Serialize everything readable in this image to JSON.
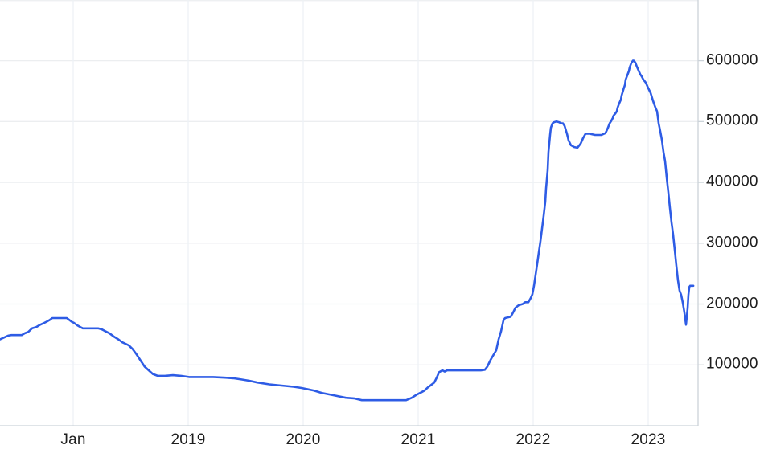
{
  "chart": {
    "title": "",
    "colors": {
      "line": "#2e5ce5",
      "grid_horizontal": "#eceef0",
      "grid_vertical": "#edf2f6",
      "axis": "#ccd3d9",
      "label": "#1e1e1e",
      "background": "#ffffff"
    }
  },
  "chart_data": {
    "type": "line",
    "title": "",
    "xlabel": "",
    "ylabel": "",
    "legend": false,
    "grid": true,
    "y_axis_side": "right",
    "x_range": [
      2017.36,
      2023.43
    ],
    "y_range": [
      0,
      700000
    ],
    "x_ticks": [
      {
        "label": "Jan",
        "year": 2018
      },
      {
        "label": "2019",
        "year": 2019
      },
      {
        "label": "2020",
        "year": 2020
      },
      {
        "label": "2021",
        "year": 2021
      },
      {
        "label": "2022",
        "year": 2022
      },
      {
        "label": "2023",
        "year": 2023
      }
    ],
    "y_ticks": [
      {
        "label": "100000",
        "value": 100000
      },
      {
        "label": "200000",
        "value": 200000
      },
      {
        "label": "300000",
        "value": 300000
      },
      {
        "label": "400000",
        "value": 400000
      },
      {
        "label": "500000",
        "value": 500000
      },
      {
        "label": "600000",
        "value": 600000
      }
    ],
    "y_gridlines": [
      100000,
      200000,
      300000,
      400000,
      500000,
      600000,
      700000
    ],
    "points": [
      [
        2017.364,
        142000
      ],
      [
        2017.399,
        145000
      ],
      [
        2017.434,
        148000
      ],
      [
        2017.462,
        149000
      ],
      [
        2017.552,
        149000
      ],
      [
        2017.58,
        152000
      ],
      [
        2017.608,
        154000
      ],
      [
        2017.643,
        160000
      ],
      [
        2017.678,
        162000
      ],
      [
        2017.713,
        166000
      ],
      [
        2017.748,
        169000
      ],
      [
        2017.769,
        171000
      ],
      [
        2017.797,
        174000
      ],
      [
        2017.818,
        177000
      ],
      [
        2017.944,
        177000
      ],
      [
        2017.965,
        174000
      ],
      [
        2017.986,
        171000
      ],
      [
        2018.007,
        169000
      ],
      [
        2018.035,
        165000
      ],
      [
        2018.063,
        162000
      ],
      [
        2018.084,
        160000
      ],
      [
        2018.217,
        160000
      ],
      [
        2018.252,
        158000
      ],
      [
        2018.273,
        156000
      ],
      [
        2018.315,
        152000
      ],
      [
        2018.357,
        146000
      ],
      [
        2018.392,
        142000
      ],
      [
        2018.427,
        137000
      ],
      [
        2018.462,
        134000
      ],
      [
        2018.483,
        132000
      ],
      [
        2018.517,
        126000
      ],
      [
        2018.552,
        117000
      ],
      [
        2018.587,
        107000
      ],
      [
        2018.622,
        97000
      ],
      [
        2018.657,
        91000
      ],
      [
        2018.692,
        85000
      ],
      [
        2018.734,
        82000
      ],
      [
        2018.797,
        82000
      ],
      [
        2018.867,
        83000
      ],
      [
        2018.937,
        82000
      ],
      [
        2019.007,
        80000
      ],
      [
        2019.112,
        80000
      ],
      [
        2019.217,
        80000
      ],
      [
        2019.322,
        79000
      ],
      [
        2019.392,
        78000
      ],
      [
        2019.462,
        76000
      ],
      [
        2019.531,
        74000
      ],
      [
        2019.601,
        71000
      ],
      [
        2019.706,
        68000
      ],
      [
        2019.811,
        66000
      ],
      [
        2019.916,
        64000
      ],
      [
        2019.986,
        62000
      ],
      [
        2020.091,
        58000
      ],
      [
        2020.161,
        54000
      ],
      [
        2020.266,
        50000
      ],
      [
        2020.371,
        46000
      ],
      [
        2020.441,
        45000
      ],
      [
        2020.51,
        42000
      ],
      [
        2020.79,
        42000
      ],
      [
        2020.895,
        42000
      ],
      [
        2020.944,
        46000
      ],
      [
        2020.986,
        51000
      ],
      [
        2021.028,
        55000
      ],
      [
        2021.056,
        58000
      ],
      [
        2021.084,
        63000
      ],
      [
        2021.112,
        67000
      ],
      [
        2021.14,
        71000
      ],
      [
        2021.161,
        79000
      ],
      [
        2021.182,
        88000
      ],
      [
        2021.21,
        91000
      ],
      [
        2021.231,
        89000
      ],
      [
        2021.252,
        91000
      ],
      [
        2021.545,
        91000
      ],
      [
        2021.58,
        92000
      ],
      [
        2021.601,
        97000
      ],
      [
        2021.629,
        108000
      ],
      [
        2021.65,
        115000
      ],
      [
        2021.678,
        124000
      ],
      [
        2021.699,
        142000
      ],
      [
        2021.72,
        155000
      ],
      [
        2021.741,
        173000
      ],
      [
        2021.755,
        177000
      ],
      [
        2021.804,
        179000
      ],
      [
        2021.825,
        186000
      ],
      [
        2021.846,
        194000
      ],
      [
        2021.874,
        198000
      ],
      [
        2021.909,
        200000
      ],
      [
        2021.93,
        203000
      ],
      [
        2021.958,
        203000
      ],
      [
        2021.979,
        210000
      ],
      [
        2021.993,
        216000
      ],
      [
        2022.007,
        230000
      ],
      [
        2022.021,
        248000
      ],
      [
        2022.035,
        266000
      ],
      [
        2022.049,
        285000
      ],
      [
        2022.063,
        303000
      ],
      [
        2022.077,
        324000
      ],
      [
        2022.091,
        345000
      ],
      [
        2022.105,
        368000
      ],
      [
        2022.112,
        390000
      ],
      [
        2022.126,
        420000
      ],
      [
        2022.133,
        450000
      ],
      [
        2022.147,
        478000
      ],
      [
        2022.154,
        490000
      ],
      [
        2022.168,
        497000
      ],
      [
        2022.182,
        499000
      ],
      [
        2022.203,
        500000
      ],
      [
        2022.224,
        499000
      ],
      [
        2022.245,
        497000
      ],
      [
        2022.259,
        497000
      ],
      [
        2022.273,
        493000
      ],
      [
        2022.294,
        480000
      ],
      [
        2022.308,
        469000
      ],
      [
        2022.329,
        461000
      ],
      [
        2022.357,
        458000
      ],
      [
        2022.385,
        457000
      ],
      [
        2022.413,
        464000
      ],
      [
        2022.434,
        473000
      ],
      [
        2022.455,
        480000
      ],
      [
        2022.49,
        480000
      ],
      [
        2022.538,
        478000
      ],
      [
        2022.594,
        478000
      ],
      [
        2022.629,
        481000
      ],
      [
        2022.65,
        490000
      ],
      [
        2022.664,
        497000
      ],
      [
        2022.678,
        501000
      ],
      [
        2022.692,
        506000
      ],
      [
        2022.699,
        510000
      ],
      [
        2022.713,
        513000
      ],
      [
        2022.727,
        517000
      ],
      [
        2022.734,
        523000
      ],
      [
        2022.748,
        530000
      ],
      [
        2022.762,
        536000
      ],
      [
        2022.769,
        543000
      ],
      [
        2022.783,
        552000
      ],
      [
        2022.797,
        560000
      ],
      [
        2022.804,
        569000
      ],
      [
        2022.818,
        576000
      ],
      [
        2022.832,
        583000
      ],
      [
        2022.839,
        589000
      ],
      [
        2022.853,
        596000
      ],
      [
        2022.867,
        600000
      ],
      [
        2022.874,
        600000
      ],
      [
        2022.888,
        597000
      ],
      [
        2022.902,
        590000
      ],
      [
        2022.916,
        584000
      ],
      [
        2022.93,
        578000
      ],
      [
        2022.944,
        574000
      ],
      [
        2022.958,
        569000
      ],
      [
        2022.979,
        564000
      ],
      [
        2023.0,
        555000
      ],
      [
        2023.021,
        547000
      ],
      [
        2023.042,
        534000
      ],
      [
        2023.063,
        523000
      ],
      [
        2023.077,
        517000
      ],
      [
        2023.091,
        497000
      ],
      [
        2023.105,
        484000
      ],
      [
        2023.119,
        470000
      ],
      [
        2023.133,
        450000
      ],
      [
        2023.147,
        435000
      ],
      [
        2023.161,
        408000
      ],
      [
        2023.175,
        384000
      ],
      [
        2023.189,
        358000
      ],
      [
        2023.203,
        334000
      ],
      [
        2023.217,
        314000
      ],
      [
        2023.231,
        289000
      ],
      [
        2023.245,
        263000
      ],
      [
        2023.259,
        239000
      ],
      [
        2023.273,
        222000
      ],
      [
        2023.287,
        215000
      ],
      [
        2023.301,
        202000
      ],
      [
        2023.315,
        186000
      ],
      [
        2023.329,
        166000
      ],
      [
        2023.343,
        193000
      ],
      [
        2023.35,
        215000
      ],
      [
        2023.357,
        228000
      ],
      [
        2023.364,
        230000
      ],
      [
        2023.392,
        230000
      ]
    ]
  }
}
